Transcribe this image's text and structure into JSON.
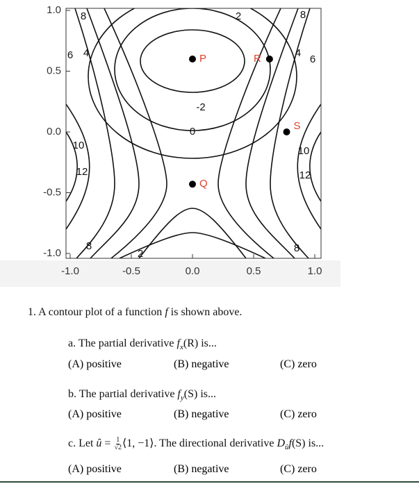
{
  "figure": {
    "xticks": [
      {
        "value": -1,
        "label": "-1.0"
      },
      {
        "value": -0.5,
        "label": "-0.5"
      },
      {
        "value": 0,
        "label": "0.0"
      },
      {
        "value": 0.5,
        "label": "0.5"
      },
      {
        "value": 1,
        "label": "1.0"
      }
    ],
    "yticks": [
      {
        "value": -1,
        "label": "-1.0"
      },
      {
        "value": -0.5,
        "label": "-0.5"
      },
      {
        "value": 0,
        "label": "0.0"
      },
      {
        "value": 0.5,
        "label": "0.5"
      },
      {
        "value": 1,
        "label": "1.0"
      }
    ],
    "contour_labels": [
      8,
      2,
      8,
      6,
      4,
      4,
      6,
      -2,
      0,
      10,
      12,
      10,
      12,
      8,
      2,
      8
    ],
    "points": [
      {
        "label": "P",
        "x": 0,
        "y": 0.6
      },
      {
        "label": "R",
        "x": 0.63,
        "y": 0.6
      },
      {
        "label": "S",
        "x": 0.77,
        "y": 0
      },
      {
        "label": "Q",
        "x": 0,
        "y": -0.43
      }
    ]
  },
  "question": {
    "title": [
      "1. A contour plot of a function ",
      "f",
      " is shown above."
    ],
    "parts": [
      {
        "prompt": [
          "a. The partial derivative ",
          "f",
          "x",
          "(R) is..."
        ],
        "options": [
          "(A) positive",
          "(B) negative",
          "(C) zero"
        ]
      },
      {
        "prompt": [
          "b. The partial derivative ",
          "f",
          "y",
          "(S) is..."
        ],
        "options": [
          "(A) positive",
          "(B) negative",
          "(C) zero"
        ]
      },
      {
        "prompt": [
          "c. Let ",
          "û",
          " = ",
          "1",
          "√2",
          "⟨1, −1⟩. The directional derivative ",
          "D",
          "û",
          "f",
          "(S) is..."
        ],
        "options": [
          "(A) positive",
          "(B) negative",
          "(C) zero"
        ]
      }
    ]
  }
}
